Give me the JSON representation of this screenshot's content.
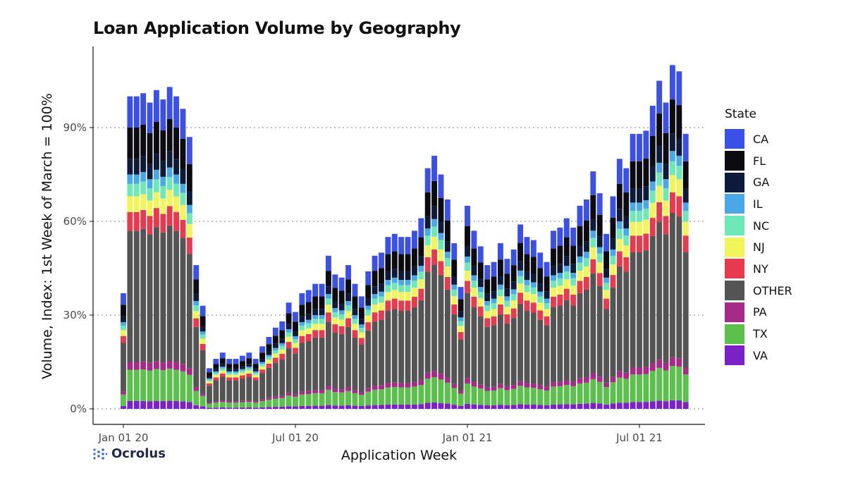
{
  "brand": {
    "name": "Ocrolus"
  },
  "chart_data": {
    "type": "bar",
    "stacked": true,
    "title": "Loan Application Volume by Geography",
    "xlabel": "Application Week",
    "ylabel": "Volume, Index: 1st Week of March = 100%",
    "ylim": [
      -3,
      113
    ],
    "yticks": [
      0,
      30,
      60,
      90
    ],
    "ytick_labels": [
      "0%",
      "30%",
      "60%",
      "90%"
    ],
    "xticks": [
      {
        "label": "Jan 01 20",
        "week": 0
      },
      {
        "label": "Jul 01 20",
        "week": 26
      },
      {
        "label": "Jan 01 21",
        "week": 52
      },
      {
        "label": "Jul 01 21",
        "week": 78
      }
    ],
    "grid": "dotted horizontal",
    "legend_title": "State",
    "legend_position": "right",
    "stack_order": [
      "VA",
      "TX",
      "PA",
      "OTHER",
      "NY",
      "NJ",
      "NC",
      "IL",
      "GA",
      "FL",
      "CA"
    ],
    "legend": [
      {
        "name": "CA",
        "color": "#3a50e6"
      },
      {
        "name": "FL",
        "color": "#0b0b11"
      },
      {
        "name": "GA",
        "color": "#0d1a3a"
      },
      {
        "name": "IL",
        "color": "#4aa8e8"
      },
      {
        "name": "NC",
        "color": "#6ee8b4"
      },
      {
        "name": "NJ",
        "color": "#f2f55a"
      },
      {
        "name": "NY",
        "color": "#e83a4e"
      },
      {
        "name": "OTHER",
        "color": "#545454"
      },
      {
        "name": "PA",
        "color": "#a82a88"
      },
      {
        "name": "TX",
        "color": "#5cc04c"
      },
      {
        "name": "VA",
        "color": "#7a22c8"
      }
    ],
    "totals": [
      37,
      100,
      100,
      101,
      98,
      102,
      99,
      103,
      100,
      96,
      87,
      46,
      33,
      13,
      16,
      18,
      16,
      16,
      17,
      18,
      16,
      20,
      23,
      26,
      28,
      34,
      31,
      37,
      38,
      40,
      40,
      49,
      43,
      42,
      46,
      40,
      36,
      44,
      49,
      50,
      55,
      56,
      55,
      55,
      57,
      61,
      77,
      81,
      75,
      67,
      53,
      39,
      65,
      57,
      52,
      46,
      47,
      53,
      48,
      51,
      59,
      55,
      54,
      50,
      47,
      57,
      58,
      61,
      58,
      65,
      67,
      76,
      69,
      56,
      68,
      80,
      77,
      88,
      88,
      89,
      97,
      105,
      98,
      110,
      108,
      88
    ]
  }
}
